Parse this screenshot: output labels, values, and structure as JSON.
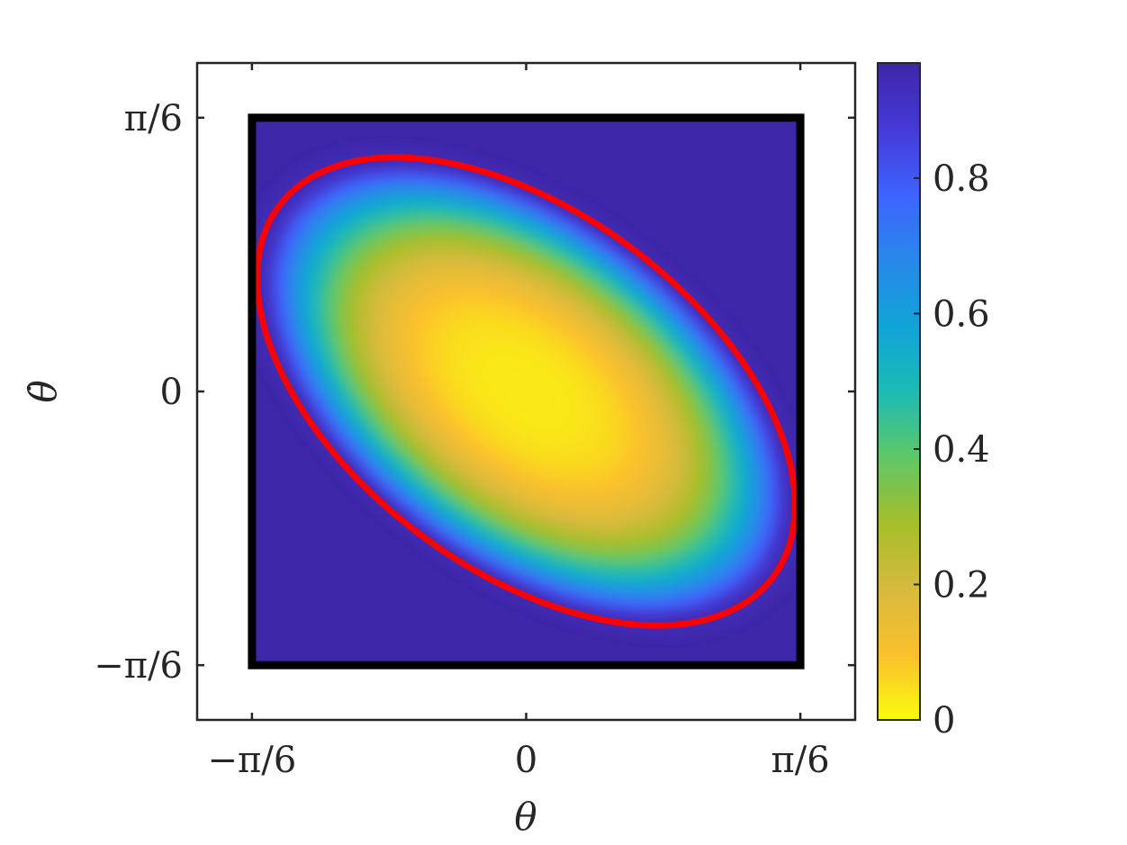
{
  "chart_data": {
    "type": "heatmap",
    "title": "",
    "xlabel": "θ",
    "ylabel": "θ̇",
    "xlim": [
      -0.6283,
      0.6283
    ],
    "ylim": [
      -0.6283,
      0.6283
    ],
    "x_ticks": [
      {
        "value": -0.5236,
        "label": "−π/6"
      },
      {
        "value": 0,
        "label": "0"
      },
      {
        "value": 0.5236,
        "label": "π/6"
      }
    ],
    "y_ticks": [
      {
        "value": 0.5236,
        "label": "π/6"
      },
      {
        "value": 0,
        "label": "0"
      },
      {
        "value": -0.5236,
        "label": "−π/6"
      }
    ],
    "region_box": {
      "x": [
        -0.5236,
        0.5236
      ],
      "y": [
        -0.5236,
        0.5236
      ],
      "color": "#000000"
    },
    "ellipse": {
      "center": [
        0,
        0
      ],
      "tilt_deg": -37,
      "semi_axes_data": [
        0.59,
        0.34
      ],
      "color": "#ff0000"
    },
    "heat": {
      "background_value": 0.97,
      "min_value": 0.03,
      "description_shape": "elliptical basin, low values in center rising to ~1 outside the red ellipse"
    },
    "colorbar": {
      "range": [
        0,
        0.97
      ],
      "ticks": [
        {
          "value": 0.8,
          "label": "0.8"
        },
        {
          "value": 0.6,
          "label": "0.6"
        },
        {
          "value": 0.4,
          "label": "0.4"
        },
        {
          "value": 0.2,
          "label": "0.2"
        },
        {
          "value": 0,
          "label": "0"
        }
      ],
      "colormap": "parula",
      "colors": [
        "#f9fb0e",
        "#fbc02d",
        "#d7ba3d",
        "#a5be2a",
        "#5fc767",
        "#1cbbb4",
        "#10a4d7",
        "#2888ea",
        "#3e63fe",
        "#4539d7",
        "#3e26a8"
      ]
    },
    "grid": false,
    "legend": "none"
  }
}
